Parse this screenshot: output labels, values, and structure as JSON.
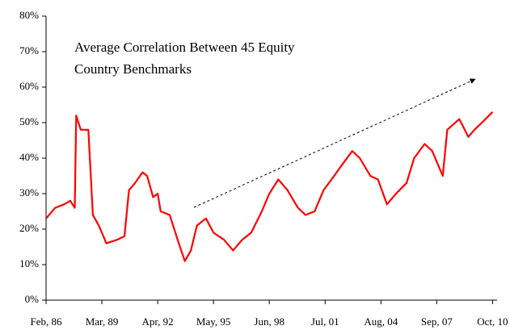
{
  "chart_data": {
    "type": "line",
    "title": [
      "Average Correlation Between 45 Equity",
      "Country Benchmarks"
    ],
    "x": [
      "1986-02",
      "1986-08",
      "1987-02",
      "1987-06",
      "1987-09",
      "1987-10",
      "1988-01",
      "1988-06",
      "1988-09",
      "1989-01",
      "1989-06",
      "1990-01",
      "1990-06",
      "1990-09",
      "1991-01",
      "1991-06",
      "1991-09",
      "1992-01",
      "1992-04",
      "1992-06",
      "1992-12",
      "1993-06",
      "1993-10",
      "1994-02",
      "1994-06",
      "1994-12",
      "1995-05",
      "1995-12",
      "1996-06",
      "1996-12",
      "1997-06",
      "1998-01",
      "1998-06",
      "1998-12",
      "1999-06",
      "2000-01",
      "2000-06",
      "2000-12",
      "2001-06",
      "2002-01",
      "2002-06",
      "2003-01",
      "2003-06",
      "2004-01",
      "2004-06",
      "2004-12",
      "2005-06",
      "2006-01",
      "2006-06",
      "2007-01",
      "2007-06",
      "2007-10",
      "2008-01",
      "2008-04",
      "2008-12",
      "2009-06",
      "2009-10",
      "2010-03",
      "2010-10"
    ],
    "series": [
      {
        "color": "#ff0000",
        "values": [
          23,
          26,
          27,
          28,
          26,
          52,
          48,
          48,
          24,
          21,
          16,
          17,
          18,
          31,
          33,
          36,
          35,
          29,
          30,
          25,
          24,
          16,
          11,
          14,
          21,
          23,
          19,
          17,
          14,
          17,
          19,
          25,
          30,
          34,
          31,
          26,
          24,
          25,
          31,
          35,
          38,
          42,
          40,
          35,
          34,
          27,
          30,
          33,
          40,
          44,
          42,
          38,
          35,
          48,
          51,
          46,
          48,
          50,
          53
        ]
      }
    ],
    "xlim": [
      "1986-02",
      "2011-01"
    ],
    "xticks": [
      {
        "value": "1986-02",
        "label": "Feb, 86"
      },
      {
        "value": "1989-03",
        "label": "Mar, 89"
      },
      {
        "value": "1992-04",
        "label": "Apr, 92"
      },
      {
        "value": "1995-05",
        "label": "May, 95"
      },
      {
        "value": "1998-06",
        "label": "Jun, 98"
      },
      {
        "value": "2001-07",
        "label": "Jul, 01"
      },
      {
        "value": "2004-08",
        "label": "Aug, 04"
      },
      {
        "value": "2007-09",
        "label": "Sep, 07"
      },
      {
        "value": "2010-10",
        "label": "Oct, 10"
      }
    ],
    "ylim": [
      0,
      80
    ],
    "yticks": [
      {
        "value": 0,
        "label": "0%"
      },
      {
        "value": 10,
        "label": "10%"
      },
      {
        "value": 20,
        "label": "20%"
      },
      {
        "value": 30,
        "label": "30%"
      },
      {
        "value": 40,
        "label": "40%"
      },
      {
        "value": 50,
        "label": "50%"
      },
      {
        "value": 60,
        "label": "60%"
      },
      {
        "value": 70,
        "label": "70%"
      },
      {
        "value": 80,
        "label": "80%"
      }
    ]
  }
}
